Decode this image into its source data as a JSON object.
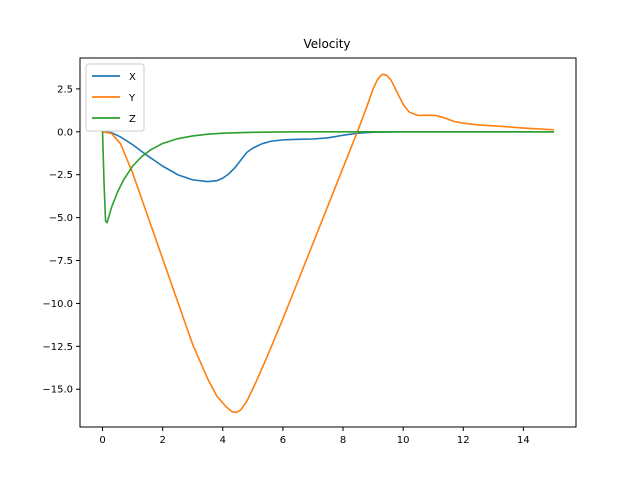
{
  "chart_data": {
    "type": "line",
    "title": "Velocity",
    "xlabel": "",
    "ylabel": "",
    "xlim": [
      -0.75,
      15.75
    ],
    "ylim": [
      -17.2,
      4.3
    ],
    "xticks": [
      0,
      2,
      4,
      6,
      8,
      10,
      12,
      14
    ],
    "xtick_labels": [
      "0",
      "2",
      "4",
      "6",
      "8",
      "10",
      "12",
      "14"
    ],
    "yticks": [
      2.5,
      0.0,
      -2.5,
      -5.0,
      -7.5,
      -10.0,
      -12.5,
      -15.0
    ],
    "ytick_labels": [
      "2.5",
      "0.0",
      "−2.5",
      "−5.0",
      "−7.5",
      "−10.0",
      "−12.5",
      "−15.0"
    ],
    "grid": false,
    "legend_position": "upper-left",
    "series": [
      {
        "name": "X",
        "color": "#1f77b4",
        "x": [
          0,
          0.3,
          0.6,
          1.0,
          1.5,
          2.0,
          2.5,
          3.0,
          3.5,
          3.8,
          4.0,
          4.2,
          4.4,
          4.6,
          4.8,
          5.0,
          5.3,
          5.6,
          6.0,
          6.5,
          7.0,
          7.5,
          8.0,
          8.5,
          9.0,
          10.0,
          11.0,
          12.0,
          13.0,
          14.0,
          15.0
        ],
        "y": [
          0,
          -0.05,
          -0.3,
          -0.75,
          -1.4,
          -2.0,
          -2.5,
          -2.8,
          -2.9,
          -2.85,
          -2.7,
          -2.45,
          -2.1,
          -1.65,
          -1.2,
          -0.95,
          -0.7,
          -0.55,
          -0.47,
          -0.44,
          -0.42,
          -0.35,
          -0.2,
          -0.08,
          -0.02,
          0,
          0,
          0,
          0,
          0,
          0
        ]
      },
      {
        "name": "Y",
        "color": "#ff7f0e",
        "x": [
          0,
          0.3,
          0.6,
          1.0,
          1.5,
          2.0,
          2.5,
          3.0,
          3.5,
          3.8,
          4.1,
          4.3,
          4.45,
          4.6,
          4.8,
          5.1,
          5.5,
          6.0,
          6.5,
          7.0,
          7.5,
          8.0,
          8.5,
          8.8,
          9.0,
          9.15,
          9.3,
          9.45,
          9.6,
          9.8,
          10.0,
          10.2,
          10.5,
          10.8,
          11.1,
          11.4,
          11.7,
          12.0,
          12.5,
          13.0,
          14.0,
          15.0
        ],
        "y": [
          0,
          -0.1,
          -0.7,
          -2.4,
          -4.9,
          -7.4,
          -9.9,
          -12.4,
          -14.4,
          -15.4,
          -16.0,
          -16.3,
          -16.35,
          -16.2,
          -15.7,
          -14.6,
          -13.0,
          -10.9,
          -8.7,
          -6.5,
          -4.3,
          -2.1,
          0.1,
          1.5,
          2.5,
          3.05,
          3.35,
          3.3,
          3.0,
          2.3,
          1.6,
          1.15,
          0.95,
          0.97,
          0.95,
          0.8,
          0.6,
          0.5,
          0.4,
          0.35,
          0.22,
          0.12
        ]
      },
      {
        "name": "Z",
        "color": "#2ca02c",
        "x": [
          0,
          0.05,
          0.1,
          0.15,
          0.2,
          0.3,
          0.5,
          0.7,
          1.0,
          1.3,
          1.6,
          2.0,
          2.5,
          3.0,
          3.5,
          4.0,
          4.5,
          5.0,
          6.0,
          7.0,
          8.0,
          9.0,
          10.0,
          12.0,
          15.0
        ],
        "y": [
          0,
          -3.0,
          -5.2,
          -5.3,
          -5.0,
          -4.4,
          -3.5,
          -2.8,
          -2.0,
          -1.45,
          -1.05,
          -0.68,
          -0.4,
          -0.24,
          -0.14,
          -0.08,
          -0.05,
          -0.03,
          -0.01,
          0,
          0,
          0,
          0,
          0,
          0
        ]
      }
    ]
  }
}
